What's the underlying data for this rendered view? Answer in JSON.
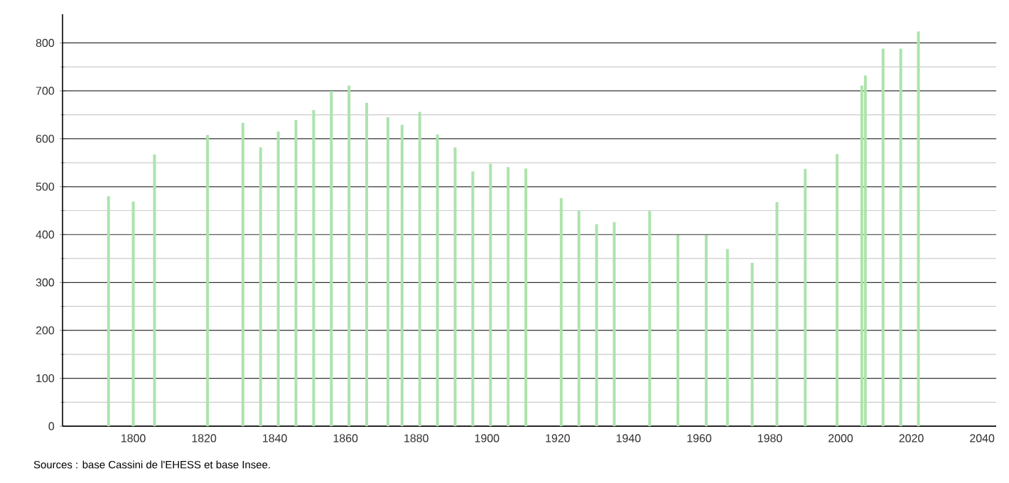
{
  "chart_data": {
    "type": "bar",
    "color": "#ade3ad",
    "x": [
      1793,
      1800,
      1806,
      1821,
      1831,
      1836,
      1841,
      1846,
      1851,
      1856,
      1861,
      1866,
      1872,
      1876,
      1881,
      1886,
      1891,
      1896,
      1901,
      1906,
      1911,
      1921,
      1926,
      1931,
      1936,
      1946,
      1954,
      1962,
      1968,
      1975,
      1982,
      1990,
      1999,
      2006,
      2007,
      2012,
      2017,
      2022
    ],
    "values": [
      480,
      469,
      567,
      608,
      633,
      582,
      615,
      639,
      660,
      700,
      711,
      675,
      645,
      629,
      656,
      609,
      582,
      532,
      548,
      541,
      538,
      476,
      450,
      422,
      426,
      449,
      399,
      399,
      370,
      341,
      468,
      537,
      568,
      711,
      732,
      788,
      788,
      824
    ],
    "xlim": [
      1780,
      2044
    ],
    "ylim": [
      0,
      860
    ],
    "xticks": [
      1800,
      1820,
      1840,
      1860,
      1880,
      1900,
      1920,
      1940,
      1960,
      1980,
      2000,
      2020,
      2040
    ],
    "yticks": [
      0,
      100,
      200,
      300,
      400,
      500,
      600,
      700,
      800
    ],
    "grid": "y",
    "annotations": [
      "Sources : base Cassini de l'EHESS et base Insee."
    ]
  }
}
